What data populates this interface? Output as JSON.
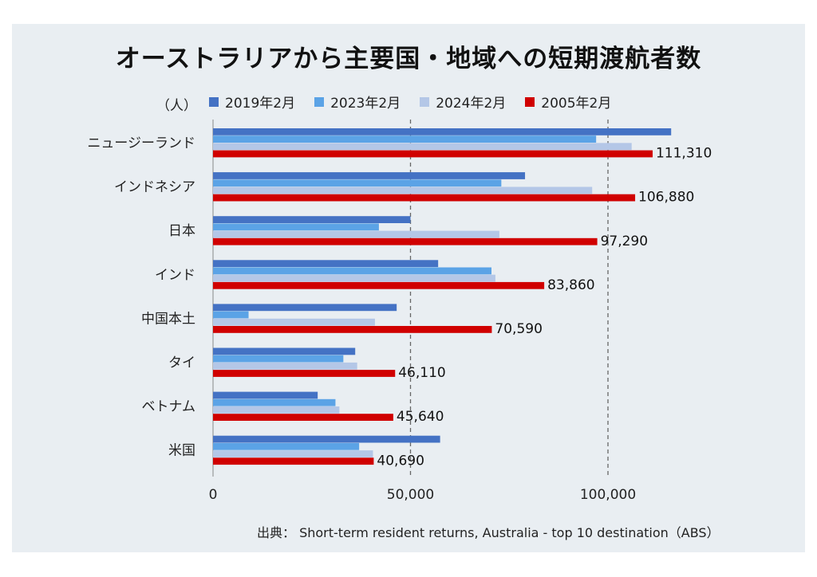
{
  "title": "オーストラリアから主要国・地域への短期渡航者数",
  "unit_label": "（人）",
  "source": "出典： Short-term resident returns, Australia - top 10 destination（ABS）",
  "colors": {
    "2019年2月": "#4472c4",
    "2023年2月": "#5ba3e6",
    "2024年2月": "#b4c7e7",
    "2005年2月": "#d00000"
  },
  "chart_data": {
    "type": "bar",
    "orientation": "horizontal",
    "categories": [
      "ニュージーランド",
      "インドネシア",
      "日本",
      "インド",
      "中国本土",
      "タイ",
      "ベトナム",
      "米国"
    ],
    "series": [
      {
        "name": "2019年2月",
        "values": [
          116000,
          79000,
          50000,
          57000,
          46500,
          36000,
          26500,
          57500
        ]
      },
      {
        "name": "2023年2月",
        "values": [
          97000,
          73000,
          42000,
          70500,
          9000,
          33000,
          31000,
          37000
        ]
      },
      {
        "name": "2024年2月",
        "values": [
          106000,
          96000,
          72500,
          71500,
          41000,
          36500,
          32000,
          40500
        ]
      },
      {
        "name": "2005年2月",
        "values": [
          111310,
          106880,
          97290,
          83860,
          70590,
          46110,
          45640,
          40690
        ]
      }
    ],
    "data_labels": [
      "111,310",
      "106,880",
      "97,290",
      "83,860",
      "70,590",
      "46,110",
      "45,640",
      "40,690"
    ],
    "x_ticks": [
      "0",
      "50,000",
      "100,000"
    ],
    "x_tick_values": [
      0,
      50000,
      100000
    ],
    "xlim": [
      0,
      120000
    ],
    "grid": "vertical dashed at 50,000 and 100,000",
    "legend_position": "top"
  }
}
